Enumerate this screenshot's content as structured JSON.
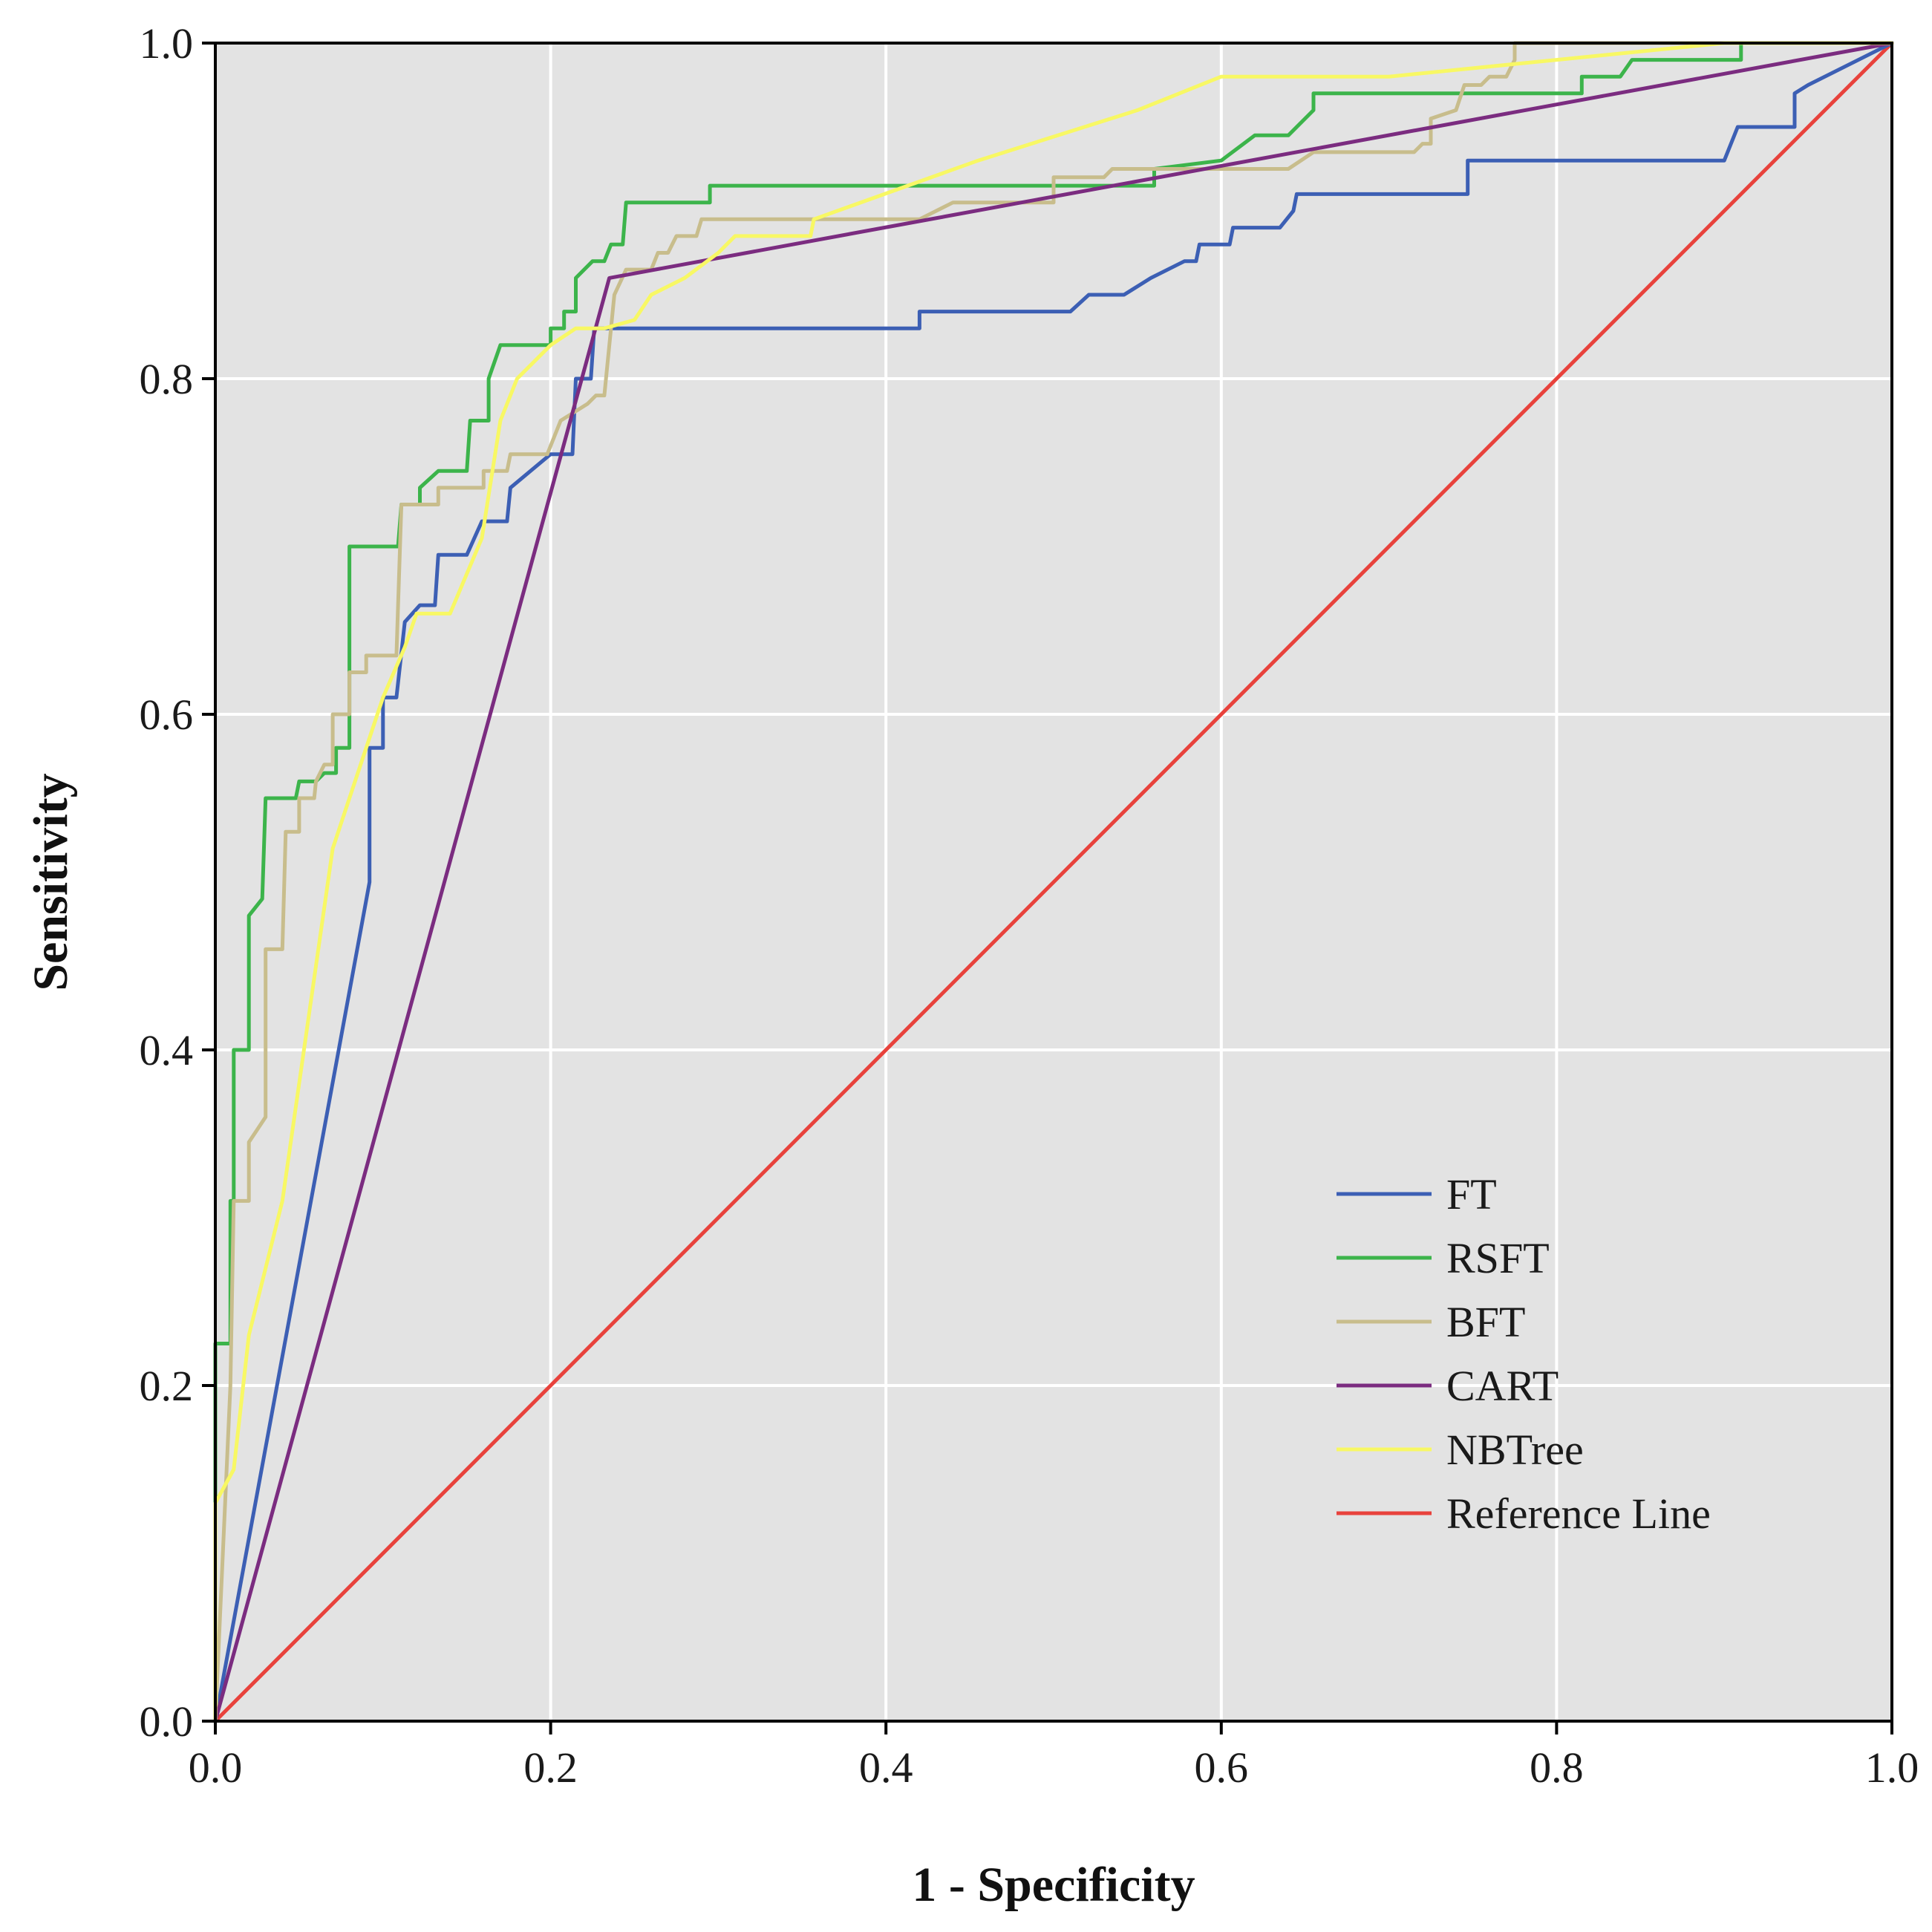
{
  "chart_data": {
    "type": "line",
    "title": "",
    "xlabel": "1 - Specificity",
    "ylabel": "Sensitivity",
    "xlim": [
      0,
      1
    ],
    "ylim": [
      0,
      1
    ],
    "xticks": [
      "0.0",
      "0.2",
      "0.4",
      "0.6",
      "0.8",
      "1.0"
    ],
    "yticks": [
      "0.0",
      "0.2",
      "0.4",
      "0.6",
      "0.8",
      "1.0"
    ],
    "grid": true,
    "legend_position": "bottom-right",
    "colors": {
      "plot_background": "#e3e3e3",
      "grid": "#ffffff",
      "axis": "#000000"
    },
    "series": [
      {
        "name": "FT",
        "color": "#3c5fb4",
        "points": [
          [
            0,
            0
          ],
          [
            0.092,
            0.5
          ],
          [
            0.092,
            0.58
          ],
          [
            0.1,
            0.58
          ],
          [
            0.1,
            0.61
          ],
          [
            0.108,
            0.61
          ],
          [
            0.113,
            0.655
          ],
          [
            0.122,
            0.665
          ],
          [
            0.131,
            0.665
          ],
          [
            0.133,
            0.695
          ],
          [
            0.15,
            0.695
          ],
          [
            0.159,
            0.715
          ],
          [
            0.174,
            0.715
          ],
          [
            0.176,
            0.735
          ],
          [
            0.2,
            0.755
          ],
          [
            0.213,
            0.755
          ],
          [
            0.215,
            0.8
          ],
          [
            0.224,
            0.8
          ],
          [
            0.226,
            0.83
          ],
          [
            0.42,
            0.83
          ],
          [
            0.42,
            0.84
          ],
          [
            0.51,
            0.84
          ],
          [
            0.521,
            0.85
          ],
          [
            0.542,
            0.85
          ],
          [
            0.558,
            0.86
          ],
          [
            0.578,
            0.87
          ],
          [
            0.585,
            0.87
          ],
          [
            0.587,
            0.88
          ],
          [
            0.605,
            0.88
          ],
          [
            0.607,
            0.89
          ],
          [
            0.635,
            0.89
          ],
          [
            0.643,
            0.9
          ],
          [
            0.645,
            0.91
          ],
          [
            0.747,
            0.91
          ],
          [
            0.747,
            0.93
          ],
          [
            0.9,
            0.93
          ],
          [
            0.908,
            0.95
          ],
          [
            0.942,
            0.95
          ],
          [
            0.942,
            0.97
          ],
          [
            0.95,
            0.975
          ],
          [
            1.0,
            1.0
          ]
        ]
      },
      {
        "name": "RSFT",
        "color": "#3cb44b",
        "points": [
          [
            0,
            0
          ],
          [
            0,
            0.225
          ],
          [
            0.009,
            0.225
          ],
          [
            0.009,
            0.31
          ],
          [
            0.011,
            0.31
          ],
          [
            0.011,
            0.4
          ],
          [
            0.02,
            0.4
          ],
          [
            0.02,
            0.48
          ],
          [
            0.028,
            0.49
          ],
          [
            0.03,
            0.55
          ],
          [
            0.048,
            0.55
          ],
          [
            0.05,
            0.56
          ],
          [
            0.06,
            0.56
          ],
          [
            0.065,
            0.565
          ],
          [
            0.072,
            0.565
          ],
          [
            0.072,
            0.58
          ],
          [
            0.08,
            0.58
          ],
          [
            0.08,
            0.7
          ],
          [
            0.109,
            0.7
          ],
          [
            0.111,
            0.725
          ],
          [
            0.122,
            0.725
          ],
          [
            0.122,
            0.735
          ],
          [
            0.133,
            0.745
          ],
          [
            0.15,
            0.745
          ],
          [
            0.152,
            0.775
          ],
          [
            0.163,
            0.775
          ],
          [
            0.163,
            0.8
          ],
          [
            0.17,
            0.82
          ],
          [
            0.2,
            0.82
          ],
          [
            0.2,
            0.83
          ],
          [
            0.208,
            0.83
          ],
          [
            0.208,
            0.84
          ],
          [
            0.215,
            0.84
          ],
          [
            0.215,
            0.86
          ],
          [
            0.225,
            0.87
          ],
          [
            0.232,
            0.87
          ],
          [
            0.236,
            0.88
          ],
          [
            0.243,
            0.88
          ],
          [
            0.245,
            0.905
          ],
          [
            0.295,
            0.905
          ],
          [
            0.295,
            0.915
          ],
          [
            0.56,
            0.915
          ],
          [
            0.56,
            0.925
          ],
          [
            0.6,
            0.93
          ],
          [
            0.62,
            0.945
          ],
          [
            0.64,
            0.945
          ],
          [
            0.655,
            0.96
          ],
          [
            0.655,
            0.97
          ],
          [
            0.815,
            0.97
          ],
          [
            0.815,
            0.98
          ],
          [
            0.838,
            0.98
          ],
          [
            0.845,
            0.99
          ],
          [
            0.91,
            0.99
          ],
          [
            0.91,
            1.0
          ],
          [
            1.0,
            1.0
          ]
        ]
      },
      {
        "name": "BFT",
        "color": "#c8bd8c",
        "points": [
          [
            0,
            0
          ],
          [
            0.009,
            0.2
          ],
          [
            0.011,
            0.31
          ],
          [
            0.02,
            0.31
          ],
          [
            0.02,
            0.345
          ],
          [
            0.03,
            0.36
          ],
          [
            0.03,
            0.46
          ],
          [
            0.04,
            0.46
          ],
          [
            0.042,
            0.53
          ],
          [
            0.05,
            0.53
          ],
          [
            0.05,
            0.55
          ],
          [
            0.059,
            0.55
          ],
          [
            0.06,
            0.56
          ],
          [
            0.065,
            0.57
          ],
          [
            0.07,
            0.57
          ],
          [
            0.07,
            0.6
          ],
          [
            0.08,
            0.6
          ],
          [
            0.08,
            0.625
          ],
          [
            0.09,
            0.625
          ],
          [
            0.09,
            0.635
          ],
          [
            0.108,
            0.635
          ],
          [
            0.111,
            0.725
          ],
          [
            0.133,
            0.725
          ],
          [
            0.133,
            0.735
          ],
          [
            0.16,
            0.735
          ],
          [
            0.16,
            0.745
          ],
          [
            0.174,
            0.745
          ],
          [
            0.176,
            0.755
          ],
          [
            0.198,
            0.755
          ],
          [
            0.206,
            0.775
          ],
          [
            0.222,
            0.785
          ],
          [
            0.227,
            0.79
          ],
          [
            0.232,
            0.79
          ],
          [
            0.236,
            0.83
          ],
          [
            0.238,
            0.85
          ],
          [
            0.245,
            0.865
          ],
          [
            0.26,
            0.865
          ],
          [
            0.264,
            0.875
          ],
          [
            0.27,
            0.875
          ],
          [
            0.275,
            0.885
          ],
          [
            0.287,
            0.885
          ],
          [
            0.29,
            0.895
          ],
          [
            0.42,
            0.895
          ],
          [
            0.44,
            0.905
          ],
          [
            0.5,
            0.905
          ],
          [
            0.5,
            0.92
          ],
          [
            0.53,
            0.92
          ],
          [
            0.535,
            0.925
          ],
          [
            0.64,
            0.925
          ],
          [
            0.655,
            0.935
          ],
          [
            0.715,
            0.935
          ],
          [
            0.72,
            0.94
          ],
          [
            0.725,
            0.94
          ],
          [
            0.725,
            0.955
          ],
          [
            0.74,
            0.96
          ],
          [
            0.745,
            0.975
          ],
          [
            0.755,
            0.975
          ],
          [
            0.76,
            0.98
          ],
          [
            0.77,
            0.98
          ],
          [
            0.775,
            0.99
          ],
          [
            0.775,
            1.0
          ],
          [
            1.0,
            1.0
          ]
        ]
      },
      {
        "name": "CART",
        "color": "#7b2c80",
        "points": [
          [
            0,
            0
          ],
          [
            0.235,
            0.86
          ],
          [
            1.0,
            1.0
          ]
        ]
      },
      {
        "name": "NBTree",
        "color": "#f8f864",
        "points": [
          [
            0,
            0
          ],
          [
            0,
            0.13
          ],
          [
            0.011,
            0.15
          ],
          [
            0.02,
            0.23
          ],
          [
            0.04,
            0.31
          ],
          [
            0.05,
            0.38
          ],
          [
            0.07,
            0.52
          ],
          [
            0.08,
            0.55
          ],
          [
            0.09,
            0.58
          ],
          [
            0.1,
            0.61
          ],
          [
            0.113,
            0.64
          ],
          [
            0.12,
            0.66
          ],
          [
            0.14,
            0.66
          ],
          [
            0.159,
            0.705
          ],
          [
            0.17,
            0.775
          ],
          [
            0.18,
            0.8
          ],
          [
            0.2,
            0.82
          ],
          [
            0.215,
            0.83
          ],
          [
            0.232,
            0.83
          ],
          [
            0.25,
            0.835
          ],
          [
            0.26,
            0.85
          ],
          [
            0.28,
            0.86
          ],
          [
            0.3,
            0.875
          ],
          [
            0.31,
            0.885
          ],
          [
            0.355,
            0.885
          ],
          [
            0.357,
            0.895
          ],
          [
            0.455,
            0.93
          ],
          [
            0.55,
            0.96
          ],
          [
            0.6,
            0.98
          ],
          [
            0.7,
            0.98
          ],
          [
            0.8,
            0.99
          ],
          [
            0.9,
            1.0
          ],
          [
            1.0,
            1.0
          ]
        ]
      },
      {
        "name": "Reference Line",
        "color": "#e8423c",
        "points": [
          [
            0,
            0
          ],
          [
            1,
            1
          ]
        ]
      }
    ]
  }
}
